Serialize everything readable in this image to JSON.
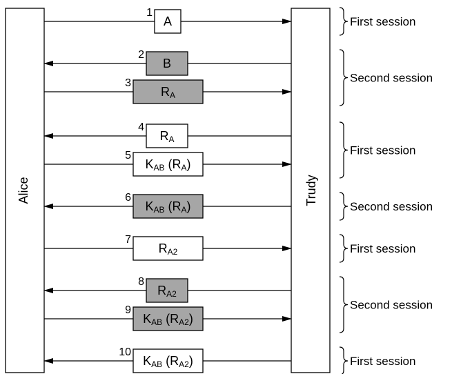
{
  "participants": {
    "left": "Alice",
    "right": "Trudy"
  },
  "colors": {
    "line": "#000000",
    "box_white": "#ffffff",
    "box_gray": "#a6a6a6"
  },
  "messages": [
    {
      "number": "1",
      "dir": "right",
      "fill": "white",
      "parts": [
        {
          "t": "A"
        }
      ]
    },
    {
      "number": "2",
      "dir": "left",
      "fill": "gray",
      "parts": [
        {
          "t": "B"
        }
      ]
    },
    {
      "number": "3",
      "dir": "right",
      "fill": "gray",
      "parts": [
        {
          "t": "R"
        },
        {
          "t": "A",
          "sub": true
        }
      ]
    },
    {
      "number": "4",
      "dir": "left",
      "fill": "white",
      "parts": [
        {
          "t": "R"
        },
        {
          "t": "A",
          "sub": true
        }
      ]
    },
    {
      "number": "5",
      "dir": "right",
      "fill": "white",
      "parts": [
        {
          "t": "K"
        },
        {
          "t": "AB",
          "sub": true
        },
        {
          "t": " (R"
        },
        {
          "t": "A",
          "sub": true
        },
        {
          "t": ")"
        }
      ]
    },
    {
      "number": "6",
      "dir": "left",
      "fill": "gray",
      "parts": [
        {
          "t": "K"
        },
        {
          "t": "AB",
          "sub": true
        },
        {
          "t": " (R"
        },
        {
          "t": "A",
          "sub": true
        },
        {
          "t": ")"
        }
      ]
    },
    {
      "number": "7",
      "dir": "right",
      "fill": "white",
      "parts": [
        {
          "t": "R"
        },
        {
          "t": "A2",
          "sub": true
        }
      ]
    },
    {
      "number": "8",
      "dir": "left",
      "fill": "gray",
      "parts": [
        {
          "t": "R"
        },
        {
          "t": "A2",
          "sub": true
        }
      ]
    },
    {
      "number": "9",
      "dir": "right",
      "fill": "gray",
      "parts": [
        {
          "t": "K"
        },
        {
          "t": "AB",
          "sub": true
        },
        {
          "t": " (R"
        },
        {
          "t": "A2",
          "sub": true
        },
        {
          "t": ")"
        }
      ]
    },
    {
      "number": "10",
      "dir": "left",
      "fill": "white",
      "parts": [
        {
          "t": "K"
        },
        {
          "t": "AB",
          "sub": true
        },
        {
          "t": " (R"
        },
        {
          "t": "A2",
          "sub": true
        },
        {
          "t": ")"
        }
      ]
    }
  ],
  "sessions": [
    {
      "label": "First session",
      "from_message": 1,
      "to_message": 1
    },
    {
      "label": "Second session",
      "from_message": 2,
      "to_message": 3
    },
    {
      "label": "First session",
      "from_message": 4,
      "to_message": 5
    },
    {
      "label": "Second session",
      "from_message": 6,
      "to_message": 6
    },
    {
      "label": "First session",
      "from_message": 7,
      "to_message": 7
    },
    {
      "label": "Second session",
      "from_message": 8,
      "to_message": 9
    },
    {
      "label": "First session",
      "from_message": 10,
      "to_message": 10
    }
  ]
}
